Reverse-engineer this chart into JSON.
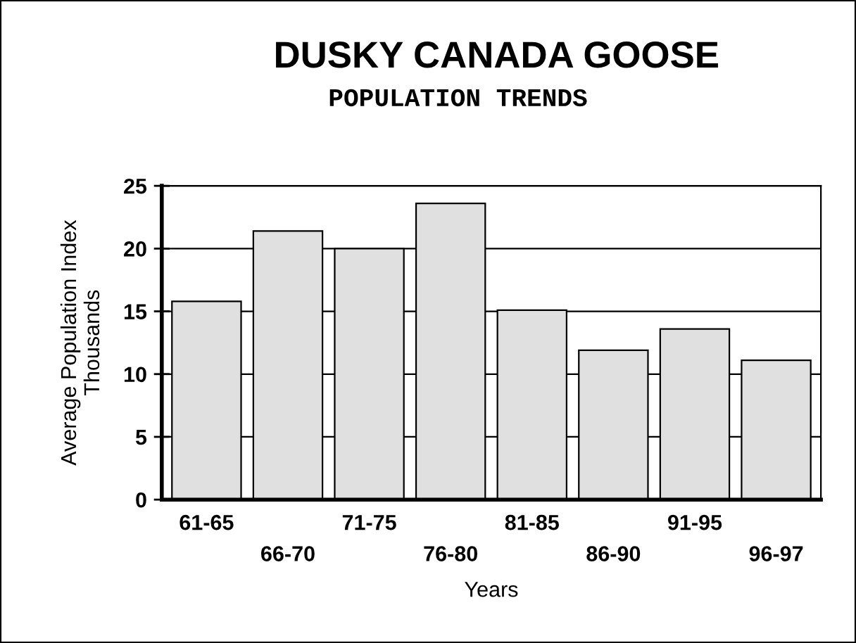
{
  "chart_data": {
    "type": "bar",
    "title": "DUSKY CANADA GOOSE",
    "subtitle": "POPULATION TRENDS",
    "xlabel": "Years",
    "ylabel": "Average Population Index\nThousands",
    "categories": [
      "61-65",
      "66-70",
      "71-75",
      "76-80",
      "81-85",
      "86-90",
      "91-95",
      "96-97"
    ],
    "values": [
      15.8,
      21.4,
      20.0,
      23.6,
      15.1,
      11.9,
      13.6,
      11.1
    ],
    "color": "#e0e0e0",
    "ylim": [
      0,
      25
    ],
    "yticks": [
      0,
      5,
      10,
      15,
      20,
      25
    ],
    "grid": "y"
  }
}
